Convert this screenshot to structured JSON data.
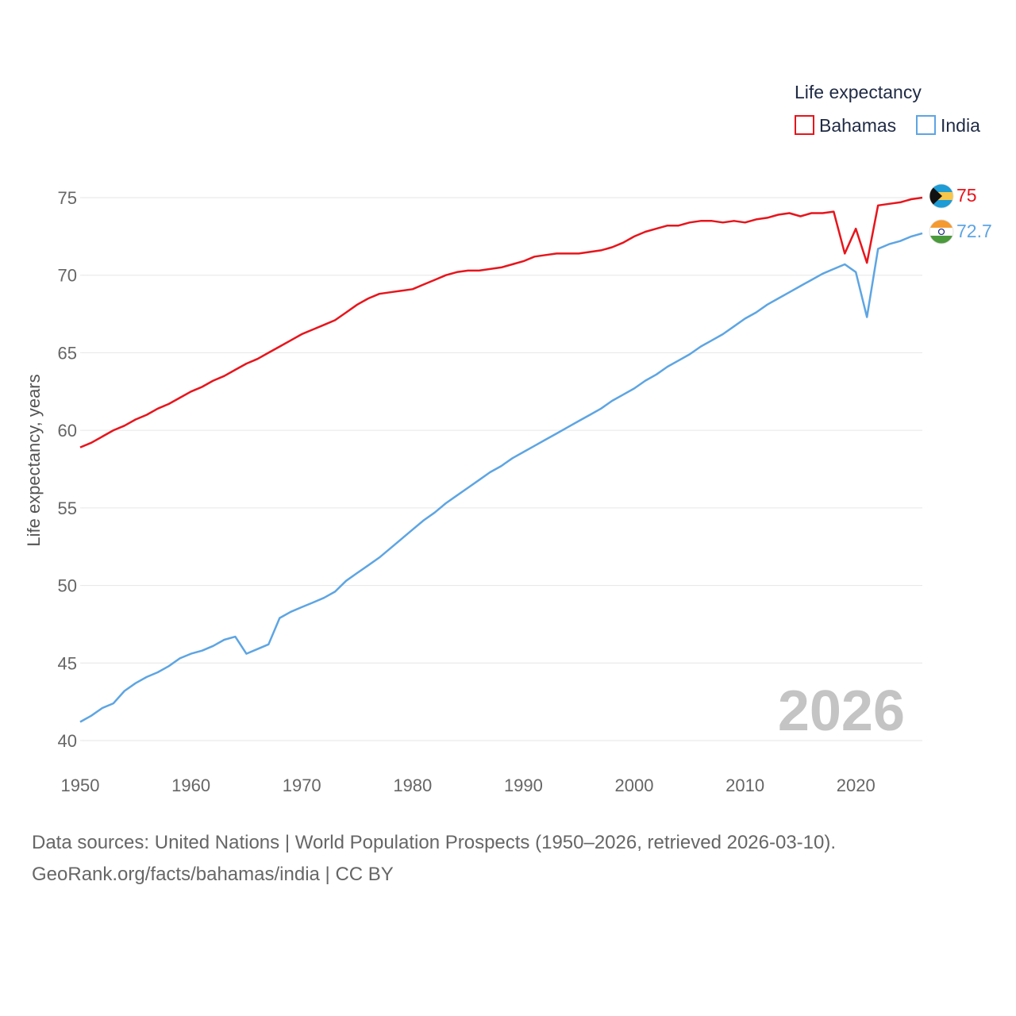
{
  "chart_data": {
    "type": "line",
    "legend_title": "Life expectancy",
    "ylabel": "Life expectancy, years",
    "xlabel": "",
    "year_label": "2026",
    "x_ticks": [
      1950,
      1960,
      1970,
      1980,
      1990,
      2000,
      2010,
      2020
    ],
    "y_ticks": [
      40,
      45,
      50,
      55,
      60,
      65,
      70,
      75
    ],
    "xlim": [
      1950,
      2026
    ],
    "ylim": [
      40,
      76
    ],
    "gridlines": true,
    "legend_position": "top-right",
    "series": [
      {
        "name": "Bahamas",
        "color": "#e8141b",
        "end_label": "75",
        "flag": "bahamas-flag",
        "x": [
          1950,
          1951,
          1952,
          1953,
          1954,
          1955,
          1956,
          1957,
          1958,
          1959,
          1960,
          1961,
          1962,
          1963,
          1964,
          1965,
          1966,
          1967,
          1968,
          1969,
          1970,
          1971,
          1972,
          1973,
          1974,
          1975,
          1976,
          1977,
          1978,
          1979,
          1980,
          1981,
          1982,
          1983,
          1984,
          1985,
          1986,
          1987,
          1988,
          1989,
          1990,
          1991,
          1992,
          1993,
          1994,
          1995,
          1996,
          1997,
          1998,
          1999,
          2000,
          2001,
          2002,
          2003,
          2004,
          2005,
          2006,
          2007,
          2008,
          2009,
          2010,
          2011,
          2012,
          2013,
          2014,
          2015,
          2016,
          2017,
          2018,
          2019,
          2020,
          2021,
          2022,
          2023,
          2024,
          2025,
          2026
        ],
        "values": [
          58.9,
          59.2,
          59.6,
          60.0,
          60.3,
          60.7,
          61.0,
          61.4,
          61.7,
          62.1,
          62.5,
          62.8,
          63.2,
          63.5,
          63.9,
          64.3,
          64.6,
          65.0,
          65.4,
          65.8,
          66.2,
          66.5,
          66.8,
          67.1,
          67.6,
          68.1,
          68.5,
          68.8,
          68.9,
          69.0,
          69.1,
          69.4,
          69.7,
          70.0,
          70.2,
          70.3,
          70.3,
          70.4,
          70.5,
          70.7,
          70.9,
          71.2,
          71.3,
          71.4,
          71.4,
          71.4,
          71.5,
          71.6,
          71.8,
          72.1,
          72.5,
          72.8,
          73.0,
          73.2,
          73.2,
          73.4,
          73.5,
          73.5,
          73.4,
          73.5,
          73.4,
          73.6,
          73.7,
          73.9,
          74.0,
          73.8,
          74.0,
          74.0,
          74.1,
          71.4,
          73.0,
          70.8,
          74.5,
          74.6,
          74.7,
          74.9,
          75.0
        ]
      },
      {
        "name": "India",
        "color": "#5da5e3",
        "end_label": "72.7",
        "flag": "india-flag",
        "x": [
          1950,
          1951,
          1952,
          1953,
          1954,
          1955,
          1956,
          1957,
          1958,
          1959,
          1960,
          1961,
          1962,
          1963,
          1964,
          1965,
          1966,
          1967,
          1968,
          1969,
          1970,
          1971,
          1972,
          1973,
          1974,
          1975,
          1976,
          1977,
          1978,
          1979,
          1980,
          1981,
          1982,
          1983,
          1984,
          1985,
          1986,
          1987,
          1988,
          1989,
          1990,
          1991,
          1992,
          1993,
          1994,
          1995,
          1996,
          1997,
          1998,
          1999,
          2000,
          2001,
          2002,
          2003,
          2004,
          2005,
          2006,
          2007,
          2008,
          2009,
          2010,
          2011,
          2012,
          2013,
          2014,
          2015,
          2016,
          2017,
          2018,
          2019,
          2020,
          2021,
          2022,
          2023,
          2024,
          2025,
          2026
        ],
        "values": [
          41.2,
          41.6,
          42.1,
          42.4,
          43.2,
          43.7,
          44.1,
          44.4,
          44.8,
          45.3,
          45.6,
          45.8,
          46.1,
          46.5,
          46.7,
          45.6,
          45.9,
          46.2,
          47.9,
          48.3,
          48.6,
          48.9,
          49.2,
          49.6,
          50.3,
          50.8,
          51.3,
          51.8,
          52.4,
          53.0,
          53.6,
          54.2,
          54.7,
          55.3,
          55.8,
          56.3,
          56.8,
          57.3,
          57.7,
          58.2,
          58.6,
          59.0,
          59.4,
          59.8,
          60.2,
          60.6,
          61.0,
          61.4,
          61.9,
          62.3,
          62.7,
          63.2,
          63.6,
          64.1,
          64.5,
          64.9,
          65.4,
          65.8,
          66.2,
          66.7,
          67.2,
          67.6,
          68.1,
          68.5,
          68.9,
          69.3,
          69.7,
          70.1,
          70.4,
          70.7,
          70.2,
          67.3,
          71.7,
          72.0,
          72.2,
          72.5,
          72.7
        ]
      }
    ]
  },
  "source": {
    "line1": "Data sources: United Nations | World Population Prospects (1950–2026, retrieved 2026-03-10).",
    "line2": "GeoRank.org/facts/bahamas/india | CC BY"
  }
}
